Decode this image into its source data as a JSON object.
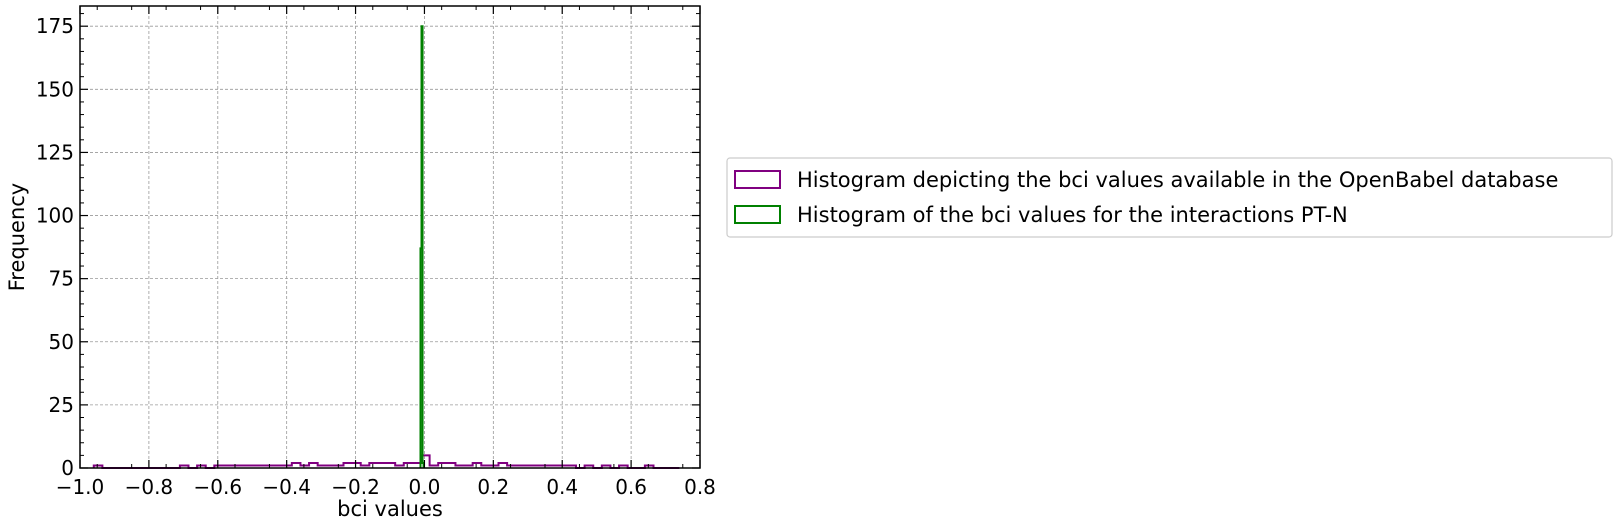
{
  "chart_data": {
    "type": "histogram",
    "xlabel": "bci values",
    "ylabel": "Frequency",
    "xlim": [
      -1.0,
      0.8
    ],
    "ylim": [
      0,
      183
    ],
    "x_ticks": [
      "−1.0",
      "−0.8",
      "−0.6",
      "−0.4",
      "−0.2",
      "0.0",
      "0.2",
      "0.4",
      "0.6",
      "0.8"
    ],
    "y_ticks": [
      "0",
      "25",
      "50",
      "75",
      "100",
      "125",
      "150",
      "175"
    ],
    "grid": true,
    "legend_placement": "outside-right",
    "legend": [
      "Histogram depicting the bci values available in the OpenBabel database",
      "Histogram of the bci values for the interactions PT-N"
    ],
    "series": [
      {
        "name": "Histogram depicting the bci values available in the OpenBabel database",
        "color": "#800080",
        "bins": [
          -0.96,
          -0.935,
          -0.91,
          -0.885,
          -0.86,
          -0.835,
          -0.81,
          -0.785,
          -0.76,
          -0.735,
          -0.71,
          -0.685,
          -0.66,
          -0.635,
          -0.61,
          -0.585,
          -0.56,
          -0.535,
          -0.51,
          -0.485,
          -0.46,
          -0.435,
          -0.41,
          -0.385,
          -0.36,
          -0.335,
          -0.31,
          -0.285,
          -0.26,
          -0.235,
          -0.21,
          -0.185,
          -0.16,
          -0.135,
          -0.11,
          -0.085,
          -0.06,
          -0.035,
          -0.01,
          0.015,
          0.04,
          0.065,
          0.09,
          0.115,
          0.14,
          0.165,
          0.19,
          0.215,
          0.24,
          0.265,
          0.29,
          0.315,
          0.34,
          0.365,
          0.39,
          0.415,
          0.44,
          0.465,
          0.49,
          0.515,
          0.54,
          0.565,
          0.59,
          0.615,
          0.64,
          0.665,
          0.69,
          0.715,
          0.74
        ],
        "counts": [
          1,
          0,
          0,
          0,
          0,
          0,
          0,
          0,
          0,
          0,
          1,
          0,
          1,
          0,
          1,
          1,
          1,
          1,
          1,
          1,
          1,
          1,
          1,
          2,
          1,
          2,
          1,
          1,
          1,
          2,
          2,
          1,
          2,
          2,
          2,
          1,
          2,
          2,
          5,
          1,
          2,
          2,
          1,
          1,
          2,
          1,
          1,
          2,
          1,
          1,
          1,
          1,
          1,
          1,
          1,
          1,
          0,
          1,
          0,
          1,
          0,
          1,
          0,
          0,
          1,
          0,
          0,
          0
        ]
      },
      {
        "name": "Histogram of the bci values for the interactions PT-N",
        "color": "#008000",
        "bins": [
          -0.0115,
          -0.0085,
          -0.0055,
          -0.0025
        ],
        "counts": [
          87,
          175,
          2
        ]
      }
    ]
  }
}
